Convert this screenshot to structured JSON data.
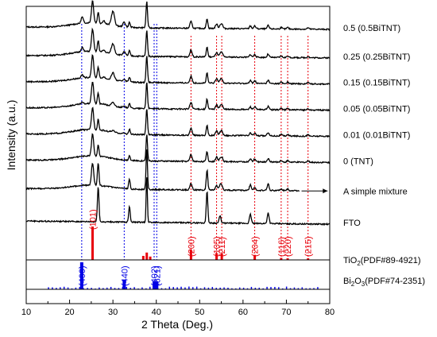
{
  "chart_data": {
    "type": "line",
    "title": "",
    "xlabel": "2 Theta (Deg.)",
    "ylabel": "Intensity (a.u.)",
    "xlim": [
      10,
      80
    ],
    "x_ticks": [
      "10",
      "20",
      "30",
      "40",
      "50",
      "60",
      "70",
      "80"
    ],
    "grid": false,
    "colors": {
      "pattern": "#000000",
      "tio2": "#e8000b",
      "bi2o3": "#0000e6"
    },
    "series": [
      {
        "name": "0.5 (0.5BiTNT)",
        "baseline": 0.93
      },
      {
        "name": "0.25 (0.25BiTNT)",
        "baseline": 0.81
      },
      {
        "name": "0.15 (0.15BiTNT)",
        "baseline": 0.7
      },
      {
        "name": "0.05 (0.05BiTNT)",
        "baseline": 0.59
      },
      {
        "name": "0.01 (0.01BiTNT)",
        "baseline": 0.48
      },
      {
        "name": "0 (TNT)",
        "baseline": 0.37
      },
      {
        "name": "FTO",
        "baseline": 0.11
      }
    ],
    "mixture": {
      "name": "A simple mixture",
      "baseline": 0.25
    },
    "tio2_reference": {
      "name_main": "TiO",
      "name_sub": "2",
      "name_rest": "(PDF#89-4921)",
      "peaks": [
        {
          "x": 25.3,
          "hkl": "(101)",
          "intensity": 1.0
        },
        {
          "x": 37.0,
          "hkl": "",
          "intensity": 0.12
        },
        {
          "x": 37.8,
          "hkl": "",
          "intensity": 0.22
        },
        {
          "x": 38.6,
          "hkl": "",
          "intensity": 0.1
        },
        {
          "x": 48.0,
          "hkl": "(200)",
          "intensity": 0.3
        },
        {
          "x": 53.9,
          "hkl": "(105)",
          "intensity": 0.2
        },
        {
          "x": 55.1,
          "hkl": "(211)",
          "intensity": 0.2
        },
        {
          "x": 62.7,
          "hkl": "(204)",
          "intensity": 0.15
        },
        {
          "x": 68.8,
          "hkl": "(116)",
          "intensity": 0.06
        },
        {
          "x": 70.3,
          "hkl": "(220)",
          "intensity": 0.05
        },
        {
          "x": 75.0,
          "hkl": "(215)",
          "intensity": 0.05
        }
      ]
    },
    "bi2o3_reference": {
      "name_main": "Bi",
      "name_sub1": "2",
      "name_mid": "O",
      "name_sub2": "3",
      "name_rest": "(PDF#74-2351)",
      "peaks": [
        {
          "x": 22.8,
          "hkl": "(400)",
          "intensity": 1.0
        },
        {
          "x": 32.6,
          "hkl": "(440)",
          "intensity": 0.35
        },
        {
          "x": 39.5,
          "hkl": "(402)",
          "intensity": 0.3
        },
        {
          "x": 40.1,
          "hkl": "(621)",
          "intensity": 0.3
        }
      ]
    },
    "blue_dotted_lines_x": [
      22.8,
      32.6,
      39.5,
      40.1
    ],
    "red_dotted_lines_x": [
      48.0,
      53.9,
      55.1,
      62.7,
      68.8,
      70.3,
      75.0
    ]
  }
}
